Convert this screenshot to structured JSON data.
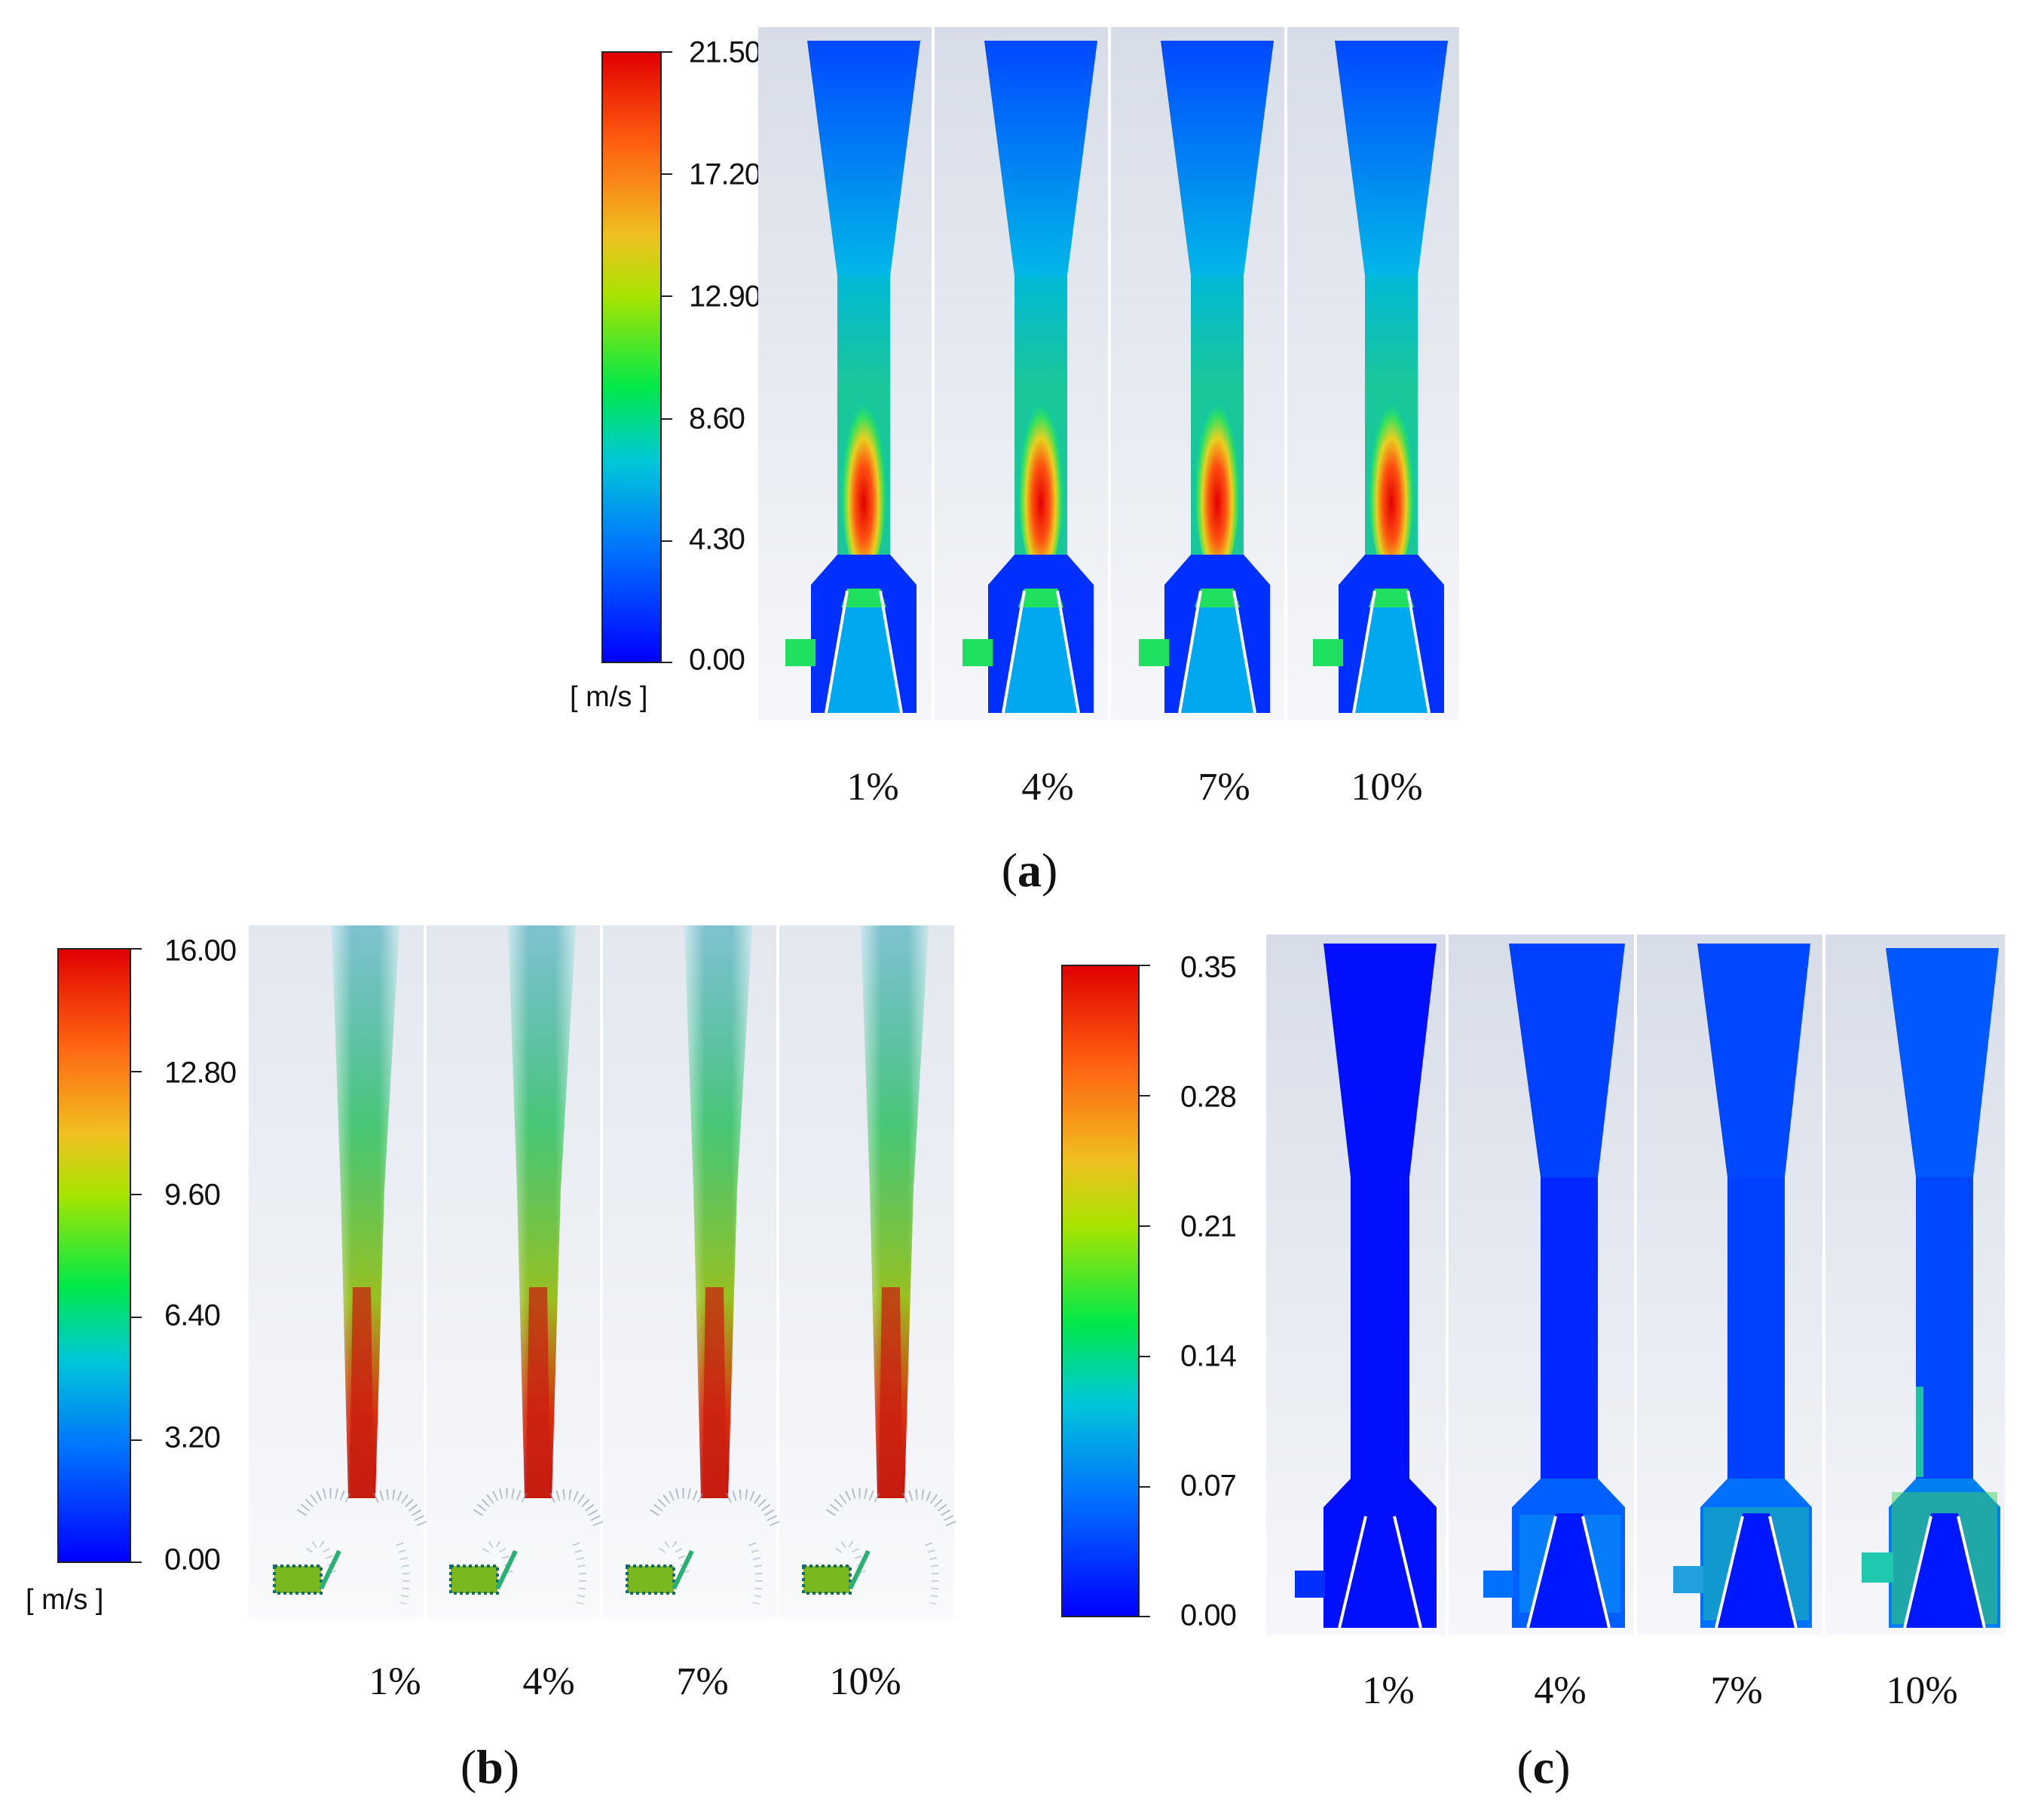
{
  "panels": [
    {
      "id": "a",
      "caption": "a",
      "colorbar": {
        "ticks": [
          "21.50",
          "17.20",
          "12.90",
          "8.60",
          "4.30",
          "0.00"
        ],
        "unit": "[ m/s ]",
        "min": 0.0,
        "max": 21.5
      },
      "cases": [
        "1%",
        "4%",
        "7%",
        "10%"
      ],
      "field": "velocity contour"
    },
    {
      "id": "b",
      "caption": "b",
      "colorbar": {
        "ticks": [
          "16.00",
          "12.80",
          "9.60",
          "6.40",
          "3.20",
          "0.00"
        ],
        "unit": "[ m/s ]",
        "min": 0.0,
        "max": 16.0
      },
      "cases": [
        "1%",
        "4%",
        "7%",
        "10%"
      ],
      "field": "particle velocity"
    },
    {
      "id": "c",
      "caption": "c",
      "colorbar": {
        "ticks": [
          "0.35",
          "0.28",
          "0.21",
          "0.14",
          "0.07",
          "0.00"
        ],
        "unit": "",
        "min": 0.0,
        "max": 0.35
      },
      "cases": [
        "1%",
        "4%",
        "7%",
        "10%"
      ],
      "field": "volume fraction contour"
    }
  ],
  "colors": {
    "jet_low": "#0000ff",
    "jet_mid": "#00e040",
    "jet_high": "#e00000"
  }
}
